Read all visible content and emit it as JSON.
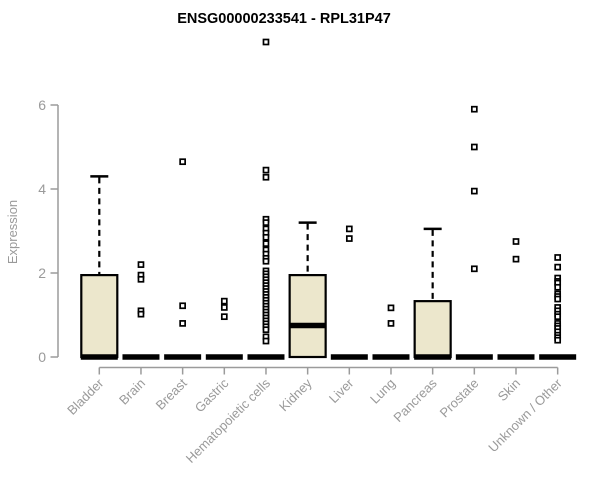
{
  "chart_data": {
    "type": "boxplot",
    "title": "ENSG00000233541 - RPL31P47",
    "ylabel": "Expression",
    "xlabel": "",
    "ylim": [
      0,
      7.6
    ],
    "yticks": [
      0,
      2,
      4,
      6
    ],
    "grid": false,
    "legend": "none",
    "box_fill": "#ece7cc",
    "box_stroke": "#000000",
    "axis_color": "#9b9b9b",
    "label_color": "#9a9a9a",
    "title_color": "#000000",
    "categories": [
      "Bladder",
      "Brain",
      "Breast",
      "Gastric",
      "Hematopoietic cells",
      "Kidney",
      "Liver",
      "Lung",
      "Pancreas",
      "Prostate",
      "Skin",
      "Unknown / Other"
    ],
    "boxes": [
      {
        "category": "Bladder",
        "q1": 0,
        "median": 0,
        "q3": 1.95,
        "whisker_low": 0,
        "whisker_high": 4.3,
        "outliers": []
      },
      {
        "category": "Brain",
        "q1": 0,
        "median": 0,
        "q3": 0,
        "whisker_low": 0,
        "whisker_high": 0,
        "outliers": [
          2.2,
          1.95,
          1.85,
          1.1,
          1.02
        ]
      },
      {
        "category": "Breast",
        "q1": 0,
        "median": 0,
        "q3": 0,
        "whisker_low": 0,
        "whisker_high": 0,
        "outliers": [
          4.65,
          1.22,
          0.8
        ]
      },
      {
        "category": "Gastric",
        "q1": 0,
        "median": 0,
        "q3": 0,
        "whisker_low": 0,
        "whisker_high": 0,
        "outliers": [
          1.33,
          1.18,
          0.96
        ]
      },
      {
        "category": "Hematopoietic cells",
        "q1": 0,
        "median": 0,
        "q3": 0,
        "whisker_low": 0,
        "whisker_high": 0,
        "outliers": [
          7.5,
          4.45,
          4.28,
          3.28,
          3.2,
          3.05,
          2.95,
          2.85,
          2.7,
          2.55,
          2.45,
          2.35,
          2.28,
          2.05,
          1.98,
          1.91,
          1.84,
          1.77,
          1.7,
          1.63,
          1.56,
          1.49,
          1.42,
          1.35,
          1.28,
          1.21,
          1.14,
          1.07,
          1.0,
          0.93,
          0.86,
          0.79,
          0.72,
          0.65,
          0.48,
          0.38
        ]
      },
      {
        "category": "Kidney",
        "q1": 0,
        "median": 0.75,
        "q3": 1.95,
        "whisker_low": 0,
        "whisker_high": 3.2,
        "outliers": []
      },
      {
        "category": "Liver",
        "q1": 0,
        "median": 0,
        "q3": 0,
        "whisker_low": 0,
        "whisker_high": 0,
        "outliers": [
          3.05,
          2.82
        ]
      },
      {
        "category": "Lung",
        "q1": 0,
        "median": 0,
        "q3": 0,
        "whisker_low": 0,
        "whisker_high": 0,
        "outliers": [
          1.17,
          0.8
        ]
      },
      {
        "category": "Pancreas",
        "q1": 0,
        "median": 0,
        "q3": 1.33,
        "whisker_low": 0,
        "whisker_high": 3.05,
        "outliers": []
      },
      {
        "category": "Prostate",
        "q1": 0,
        "median": 0,
        "q3": 0,
        "whisker_low": 0,
        "whisker_high": 0,
        "outliers": [
          5.9,
          5.0,
          3.95,
          2.1
        ]
      },
      {
        "category": "Skin",
        "q1": 0,
        "median": 0,
        "q3": 0,
        "whisker_low": 0,
        "whisker_high": 0,
        "outliers": [
          2.75,
          2.33
        ]
      },
      {
        "category": "Unknown / Other",
        "q1": 0,
        "median": 0,
        "q3": 0,
        "whisker_low": 0,
        "whisker_high": 0,
        "outliers": [
          2.37,
          2.14,
          1.88,
          1.8,
          1.76,
          1.66,
          1.5,
          1.44,
          1.38,
          1.18,
          1.1,
          1.02,
          0.96,
          0.8,
          0.74,
          0.68,
          0.6,
          0.52,
          0.46,
          0.4
        ]
      }
    ]
  }
}
